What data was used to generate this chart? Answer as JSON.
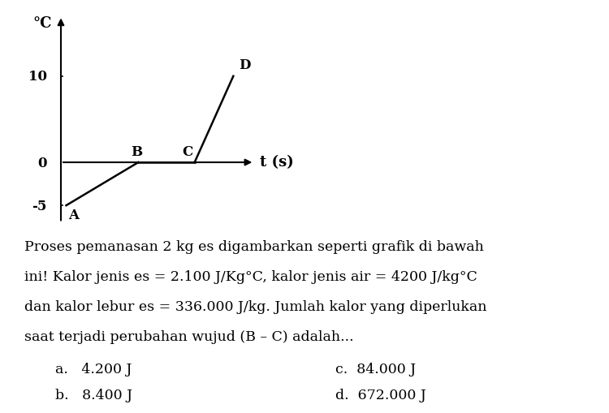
{
  "ylabel": "°C",
  "xlabel": "t (s)",
  "points": {
    "A": [
      0.15,
      -5
    ],
    "B": [
      2.2,
      0
    ],
    "C": [
      3.8,
      0
    ],
    "D": [
      4.9,
      10
    ]
  },
  "graph_bg": "#ffffff",
  "line_color": "#000000",
  "text_color": "#000000",
  "xlim": [
    0,
    9
  ],
  "ylim": [
    -7,
    17
  ],
  "body_text_line1": "Proses pemanasan 2 kg es digambarkan seperti grafik di bawah",
  "body_text_line2": "ini! Kalor jenis es = 2.100 J/Kg°C, kalor jenis air = 4200 J/kg°C",
  "body_text_line3": "dan kalor lebur es = 336.000 J/kg. Jumlah kalor yang diperlukan",
  "body_text_line4": "saat terjadi perubahan wujud (B – C) adalah...",
  "answer_a": "a.   4.200 J",
  "answer_b": "b.   8.400 J",
  "answer_c": "c.  84.000 J",
  "answer_d": "d.  672.000 J",
  "font_size_body": 12.5,
  "font_size_answer": 12.5,
  "font_size_axis_label": 13,
  "font_size_tick": 12,
  "font_size_point_label": 12
}
